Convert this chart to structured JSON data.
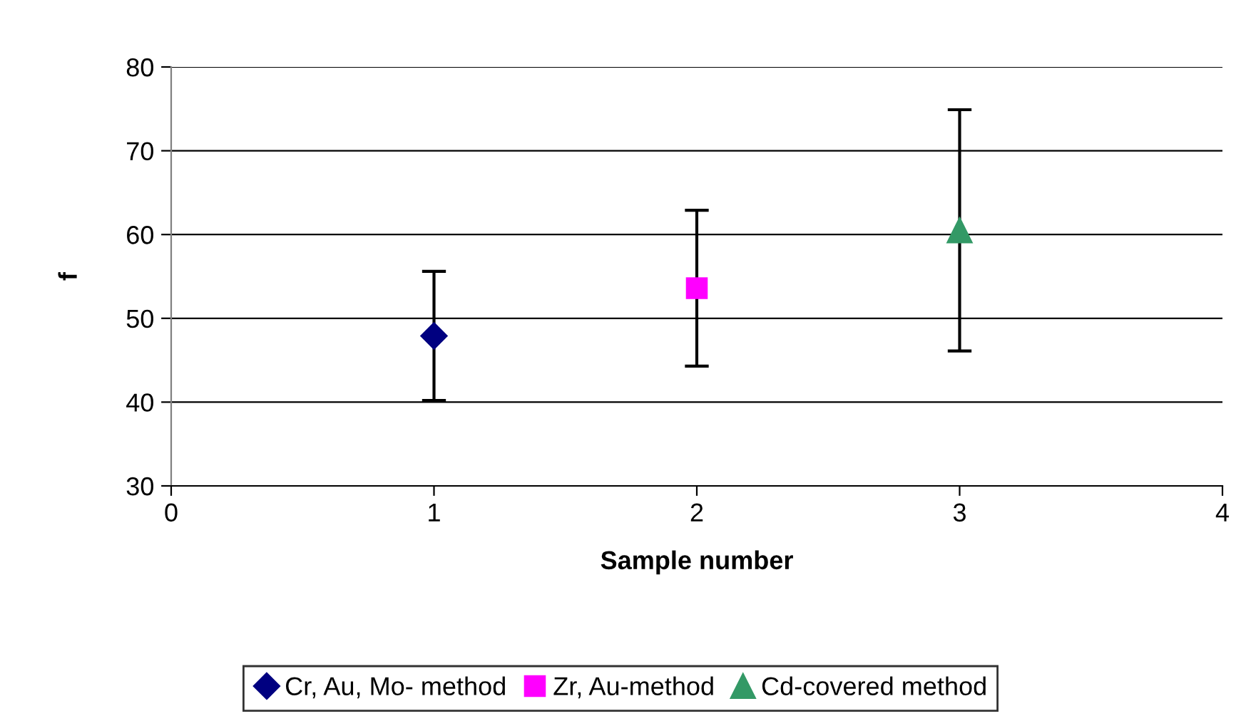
{
  "chart_data": {
    "type": "scatter",
    "xlabel": "Sample number",
    "ylabel": "f",
    "xlim": [
      0,
      4
    ],
    "xticks": [
      0,
      1,
      2,
      3,
      4
    ],
    "ylim": [
      30,
      80
    ],
    "yticks": [
      30,
      40,
      50,
      60,
      70,
      80
    ],
    "grid": "y",
    "legend": "bottom",
    "series": [
      {
        "name": "Cr, Au, Mo- method",
        "color": "#000080",
        "marker": "diamond",
        "x": [
          1
        ],
        "values": [
          47.9
        ],
        "errors": [
          7.7
        ]
      },
      {
        "name": "Zr, Au-method",
        "color": "#ff00ff",
        "marker": "square",
        "x": [
          2
        ],
        "values": [
          53.6
        ],
        "errors": [
          9.3
        ]
      },
      {
        "name": "Cd-covered method",
        "color": "#339966",
        "marker": "triangle",
        "x": [
          3
        ],
        "values": [
          60.5
        ],
        "errors": [
          14.4
        ]
      }
    ]
  }
}
